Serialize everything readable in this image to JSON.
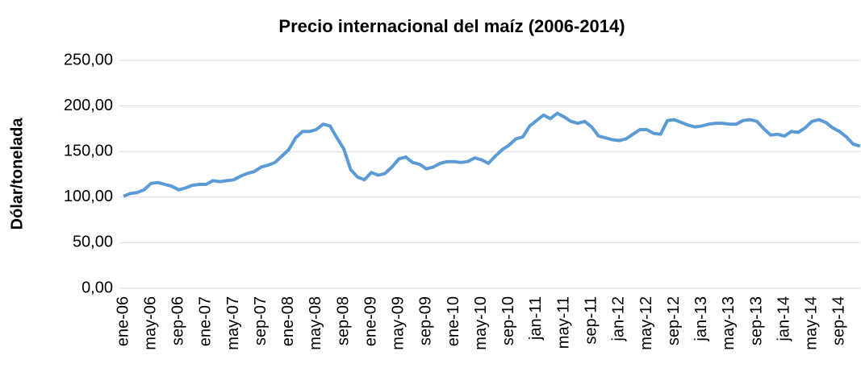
{
  "chart_data": {
    "type": "line",
    "title": "Precio internacional del maíz (2006-2014)",
    "y_label": "Dólar/tonelada",
    "categories": [
      "ene-06",
      null,
      null,
      null,
      "may-06",
      null,
      null,
      null,
      "sep-06",
      null,
      null,
      null,
      "ene-07",
      null,
      null,
      null,
      "may-07",
      null,
      null,
      null,
      "sep-07",
      null,
      null,
      null,
      "ene-08",
      null,
      null,
      null,
      "may-08",
      null,
      null,
      null,
      "sep-08",
      null,
      null,
      null,
      "ene-09",
      null,
      null,
      null,
      "may-09",
      null,
      null,
      null,
      "sep-09",
      null,
      null,
      null,
      "ene-10",
      null,
      null,
      null,
      "may-10",
      null,
      null,
      null,
      "sep-10",
      null,
      null,
      null,
      "jan-11",
      null,
      null,
      null,
      "may-11",
      null,
      null,
      null,
      "sep-11",
      null,
      null,
      null,
      "jan-12",
      null,
      null,
      null,
      "may-12",
      null,
      null,
      null,
      "sep-12",
      null,
      null,
      null,
      "jan-13",
      null,
      null,
      null,
      "may-13",
      null,
      null,
      null,
      "sep-13",
      null,
      null,
      null,
      "jan-14",
      null,
      null,
      null,
      "may-14",
      null,
      null,
      null,
      "sep-14",
      null,
      null,
      null
    ],
    "values": [
      101,
      104,
      105,
      108,
      115,
      116,
      114,
      112,
      108,
      110,
      113,
      114,
      114,
      118,
      117,
      118,
      119,
      123,
      126,
      128,
      133,
      135,
      138,
      145,
      152,
      165,
      172,
      172,
      174,
      180,
      178,
      165,
      153,
      130,
      122,
      119,
      127,
      124,
      126,
      133,
      142,
      144,
      138,
      136,
      131,
      133,
      137,
      139,
      139,
      138,
      139,
      143,
      141,
      137,
      145,
      152,
      157,
      164,
      166,
      178,
      184,
      190,
      186,
      192,
      188,
      183,
      181,
      183,
      177,
      167,
      165,
      163,
      162,
      164,
      169,
      174,
      174,
      170,
      169,
      184,
      185,
      182,
      179,
      177,
      178,
      180,
      181,
      181,
      180,
      180,
      184,
      185,
      183,
      175,
      168,
      169,
      167,
      172,
      171,
      176,
      183,
      185,
      182,
      176,
      172,
      166,
      158,
      156
    ],
    "color": "#5b9bd5",
    "ylim": [
      0,
      250
    ],
    "yticks": [
      {
        "value": 0,
        "label": "0,00"
      },
      {
        "value": 50,
        "label": "50,00"
      },
      {
        "value": 100,
        "label": "100,00"
      },
      {
        "value": 150,
        "label": "150,00"
      },
      {
        "value": 200,
        "label": "200,00"
      },
      {
        "value": 250,
        "label": "250,00"
      }
    ],
    "grid": true
  }
}
